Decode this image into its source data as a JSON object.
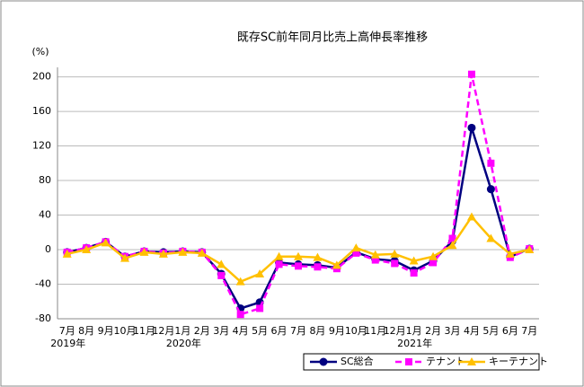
{
  "chart_data": {
    "type": "line",
    "title": "既存SC前年同月比売上高伸長率推移",
    "y_unit": "(%)",
    "categories": [
      "7月",
      "8月",
      "9月",
      "10月",
      "11月",
      "12月",
      "1月",
      "2月",
      "3月",
      "4月",
      "5月",
      "6月",
      "7月",
      "8月",
      "9月",
      "10月",
      "11月",
      "12月",
      "1月",
      "2月",
      "3月",
      "4月",
      "5月",
      "6月",
      "7月"
    ],
    "year_labels": [
      "2019年",
      null,
      null,
      null,
      null,
      null,
      "2020年",
      null,
      null,
      null,
      null,
      null,
      null,
      null,
      null,
      null,
      null,
      null,
      "2021年",
      null,
      null,
      null,
      null,
      null,
      null
    ],
    "series": [
      {
        "name": "SC総合",
        "color": "#000080",
        "marker": "circle",
        "dash": false,
        "values": [
          -3,
          2,
          9,
          -8,
          -2,
          -3,
          -2,
          -3,
          -28,
          -68,
          -61,
          -15,
          -17,
          -18,
          -21,
          -3,
          -11,
          -13,
          -24,
          -13,
          10,
          141,
          70,
          -8,
          1
        ]
      },
      {
        "name": "テナント",
        "color": "#ff00ff",
        "marker": "square",
        "dash": true,
        "values": [
          -3,
          2,
          9,
          -8,
          -2,
          -4,
          -2,
          -3,
          -30,
          -75,
          -68,
          -17,
          -19,
          -20,
          -22,
          -4,
          -12,
          -16,
          -27,
          -15,
          13,
          203,
          100,
          -9,
          1
        ]
      },
      {
        "name": "キーテナント",
        "color": "#ffc000",
        "marker": "triangle",
        "dash": false,
        "values": [
          -5,
          0,
          8,
          -10,
          -3,
          -5,
          -3,
          -4,
          -17,
          -37,
          -28,
          -8,
          -8,
          -9,
          -18,
          2,
          -6,
          -5,
          -13,
          -8,
          5,
          38,
          13,
          -5,
          0
        ]
      }
    ],
    "ylim": [
      -80,
      211
    ],
    "yticks": [
      -80,
      -40,
      0,
      40,
      80,
      120,
      160,
      200
    ],
    "grid": true
  }
}
